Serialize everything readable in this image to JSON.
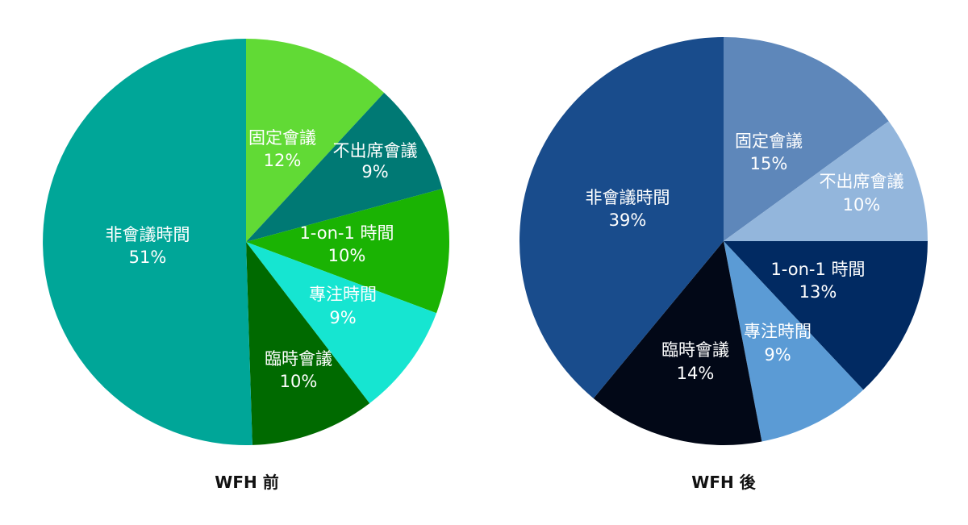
{
  "chart_data": [
    {
      "type": "pie",
      "title": "WFH 前",
      "slices": [
        {
          "label": "固定會議",
          "value": 12,
          "display": "12%",
          "color": "#61DA35"
        },
        {
          "label": "不出席會議",
          "value": 9,
          "display": "9%",
          "color": "#007974"
        },
        {
          "label": "1-on-1 時間",
          "value": 10,
          "display": "10%",
          "color": "#1AB303"
        },
        {
          "label": "專注時間",
          "value": 9,
          "display": "9%",
          "color": "#16E5D1"
        },
        {
          "label": "臨時會議",
          "value": 10,
          "display": "10%",
          "color": "#006A00"
        },
        {
          "label": "非會議時間",
          "value": 51,
          "display": "51%",
          "color": "#00A698"
        }
      ]
    },
    {
      "type": "pie",
      "title": "WFH 後",
      "slices": [
        {
          "label": "固定會議",
          "value": 15,
          "display": "15%",
          "color": "#5E87BA"
        },
        {
          "label": "不出席會議",
          "value": 10,
          "display": "10%",
          "color": "#93B6DC"
        },
        {
          "label": "1-on-1 時間",
          "value": 13,
          "display": "13%",
          "color": "#012A62"
        },
        {
          "label": "專注時間",
          "value": 9,
          "display": "9%",
          "color": "#5B9BD5"
        },
        {
          "label": "臨時會議",
          "value": 14,
          "display": "14%",
          "color": "#020817"
        },
        {
          "label": "非會議時間",
          "value": 39,
          "display": "39%",
          "color": "#194C8C"
        }
      ]
    }
  ]
}
